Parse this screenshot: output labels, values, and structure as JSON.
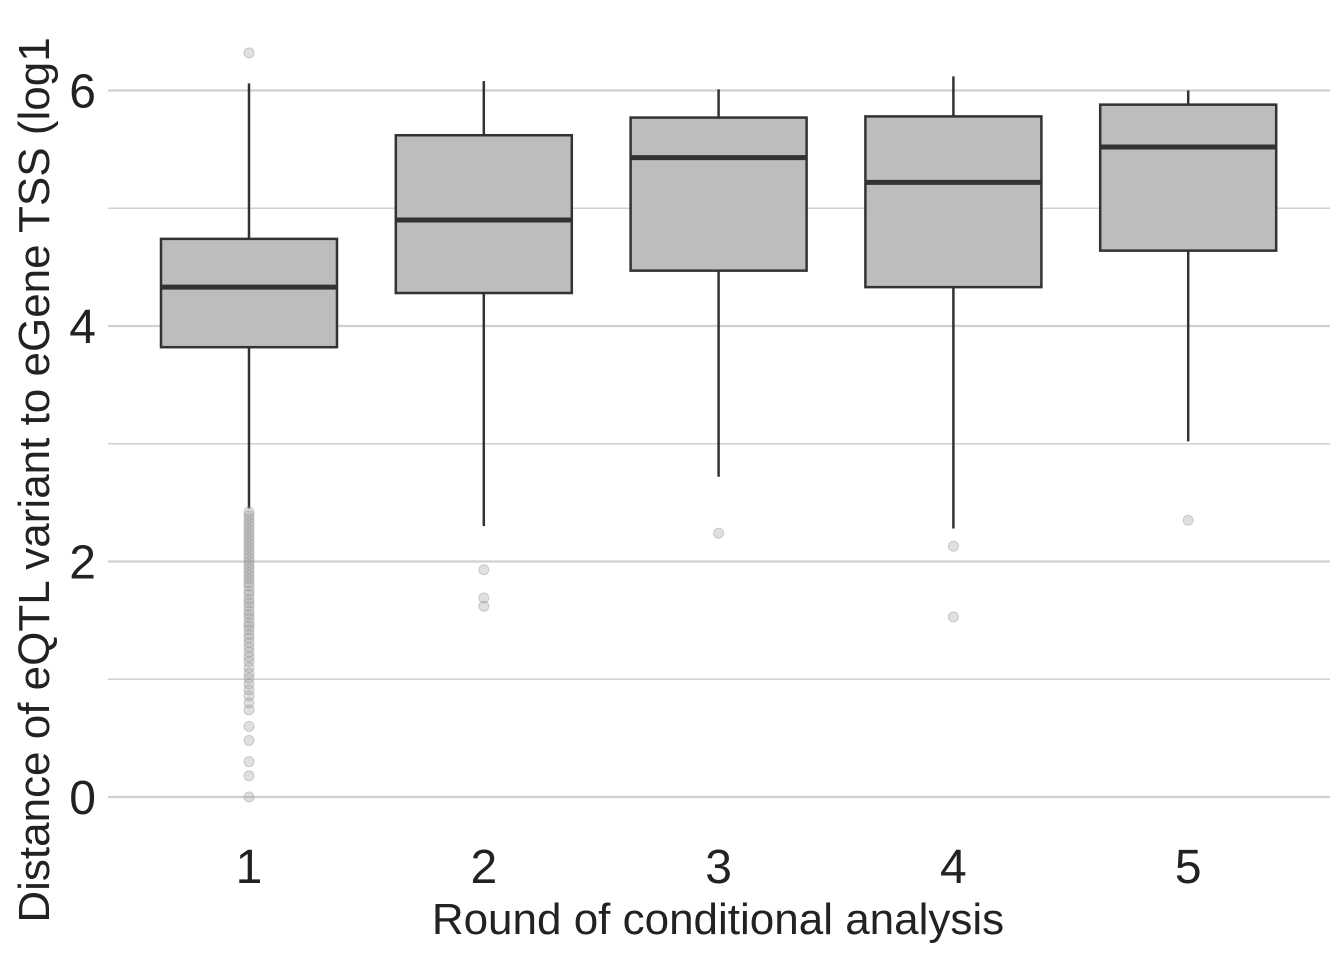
{
  "chart_data": {
    "type": "box",
    "title": "",
    "xlabel": "Round of conditional analysis",
    "ylabel": "Distance of eQTL variant to eGene TSS (log1",
    "ylim": [
      -0.15,
      6.6
    ],
    "yticks": [
      0,
      2,
      4,
      6
    ],
    "minor_yticks": [
      1,
      3,
      5
    ],
    "grid": true,
    "categories": [
      "1",
      "2",
      "3",
      "4",
      "5"
    ],
    "boxes": [
      {
        "category": "1",
        "whisker_low": 2.45,
        "q1": 3.82,
        "median": 4.33,
        "q3": 4.74,
        "whisker_high": 6.06,
        "outliers": [
          6.32,
          2.42,
          2.39,
          2.36,
          2.33,
          2.3,
          2.27,
          2.24,
          2.21,
          2.18,
          2.15,
          2.12,
          2.09,
          2.06,
          2.03,
          2.0,
          1.97,
          1.94,
          1.91,
          1.88,
          1.85,
          1.82,
          1.79,
          1.75,
          1.72,
          1.68,
          1.65,
          1.62,
          1.58,
          1.55,
          1.52,
          1.48,
          1.45,
          1.42,
          1.38,
          1.35,
          1.31,
          1.27,
          1.23,
          1.19,
          1.15,
          1.1,
          1.05,
          1.01,
          0.96,
          0.91,
          0.86,
          0.8,
          0.74,
          0.6,
          0.48,
          0.3,
          0.18,
          0.0
        ]
      },
      {
        "category": "2",
        "whisker_low": 2.3,
        "q1": 4.28,
        "median": 4.9,
        "q3": 5.62,
        "whisker_high": 6.08,
        "outliers": [
          1.93,
          1.69,
          1.62
        ]
      },
      {
        "category": "3",
        "whisker_low": 2.72,
        "q1": 4.47,
        "median": 5.43,
        "q3": 5.77,
        "whisker_high": 6.01,
        "outliers": [
          2.24
        ]
      },
      {
        "category": "4",
        "whisker_low": 2.28,
        "q1": 4.33,
        "median": 5.22,
        "q3": 5.78,
        "whisker_high": 6.12,
        "outliers": [
          2.13,
          1.53
        ]
      },
      {
        "category": "5",
        "whisker_low": 3.02,
        "q1": 4.64,
        "median": 5.52,
        "q3": 5.88,
        "whisker_high": 6.0,
        "outliers": [
          2.35
        ]
      }
    ],
    "colors": {
      "box_fill": "#bdbdbd",
      "box_edge": "#333333",
      "grid": "#d0d0d0",
      "outlier": "#999999"
    }
  }
}
